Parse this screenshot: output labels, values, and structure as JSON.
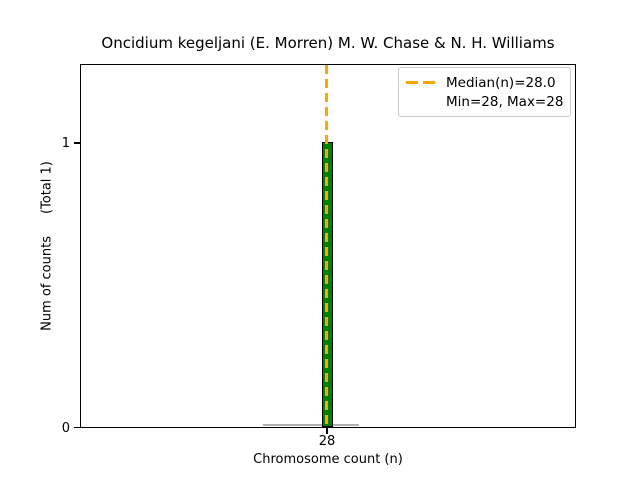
{
  "figure": {
    "title": "Oncidium kegeljani (E. Morren) M. W. Chase & N. H. Williams",
    "xlabel": "Chromosome count (n)",
    "ylabel_main": "Num of counts",
    "ylabel_total": "(Total 1)",
    "ytick_one": "1",
    "ytick_zero": "0",
    "xtick_28": "28",
    "legend": {
      "median_label": "Median(n)=28.0",
      "minmax_label": "Min=28, Max=28"
    },
    "colors": {
      "bar_fill": "#008000",
      "bar_edge": "#000000",
      "median_line": "#FFA500",
      "legend_border": "#cccccc",
      "baseline_gray": "#b0b0b0"
    }
  },
  "chart_data": {
    "type": "bar",
    "title": "Oncidium kegeljani (E. Morren) M. W. Chase & N. H. Williams",
    "xlabel": "Chromosome count (n)",
    "ylabel": "Num of counts    (Total 1)",
    "categories": [
      28
    ],
    "values": [
      1
    ],
    "total_counts": 1,
    "median_n": 28.0,
    "min_n": 28,
    "max_n": 28,
    "xticks": [
      28
    ],
    "yticks": [
      0,
      1
    ],
    "ylim": [
      0,
      1.28
    ],
    "grid": false,
    "legend_position": "upper right",
    "legend_entries": [
      "Median(n)=28.0",
      "Min=28, Max=28"
    ],
    "bar_color": "#008000",
    "bar_edge_color": "#000000",
    "median_line_color": "#FFA500",
    "median_line_style": "dashed"
  }
}
